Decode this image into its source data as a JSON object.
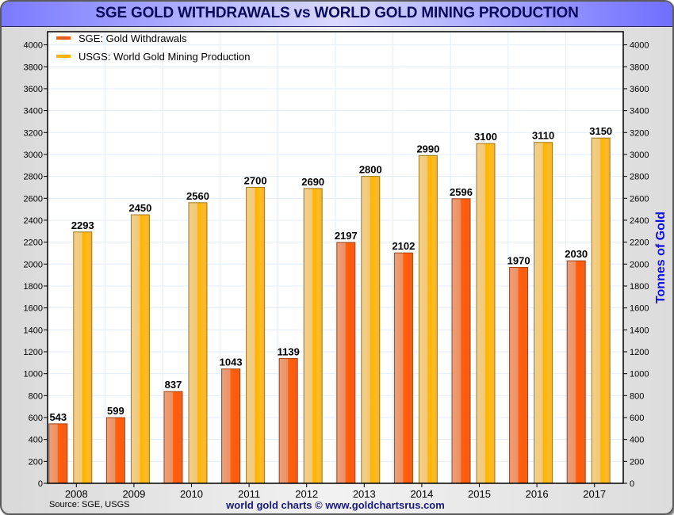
{
  "chart_data": {
    "type": "bar",
    "title": "SGE GOLD WITHDRAWALS vs WORLD GOLD MINING PRODUCTION",
    "xlabel": "",
    "ylabel": "Tonnes of Gold",
    "ylim": [
      0,
      4120
    ],
    "yticks": [
      0,
      200,
      400,
      600,
      800,
      1000,
      1200,
      1400,
      1600,
      1800,
      2000,
      2200,
      2400,
      2600,
      2800,
      3000,
      3200,
      3400,
      3600,
      3800,
      4000
    ],
    "grid": true,
    "legend_position": "top-left",
    "categories": [
      "2008",
      "2009",
      "2010",
      "2011",
      "2012",
      "2013",
      "2014",
      "2015",
      "2016",
      "2017"
    ],
    "series": [
      {
        "name": "SGE: Gold Withdrawals",
        "color": "#ff5a0a",
        "values": [
          543,
          599,
          837,
          1043,
          1139,
          2197,
          2102,
          2596,
          1970,
          2030
        ]
      },
      {
        "name": "USGS: World Gold Mining Production",
        "color": "#ffb400",
        "values": [
          2293,
          2450,
          2560,
          2700,
          2690,
          2800,
          2990,
          3100,
          3110,
          3150
        ]
      }
    ],
    "source": "Source: SGE, USGS",
    "credit": "world gold charts © www.goldchartsrus.com"
  }
}
